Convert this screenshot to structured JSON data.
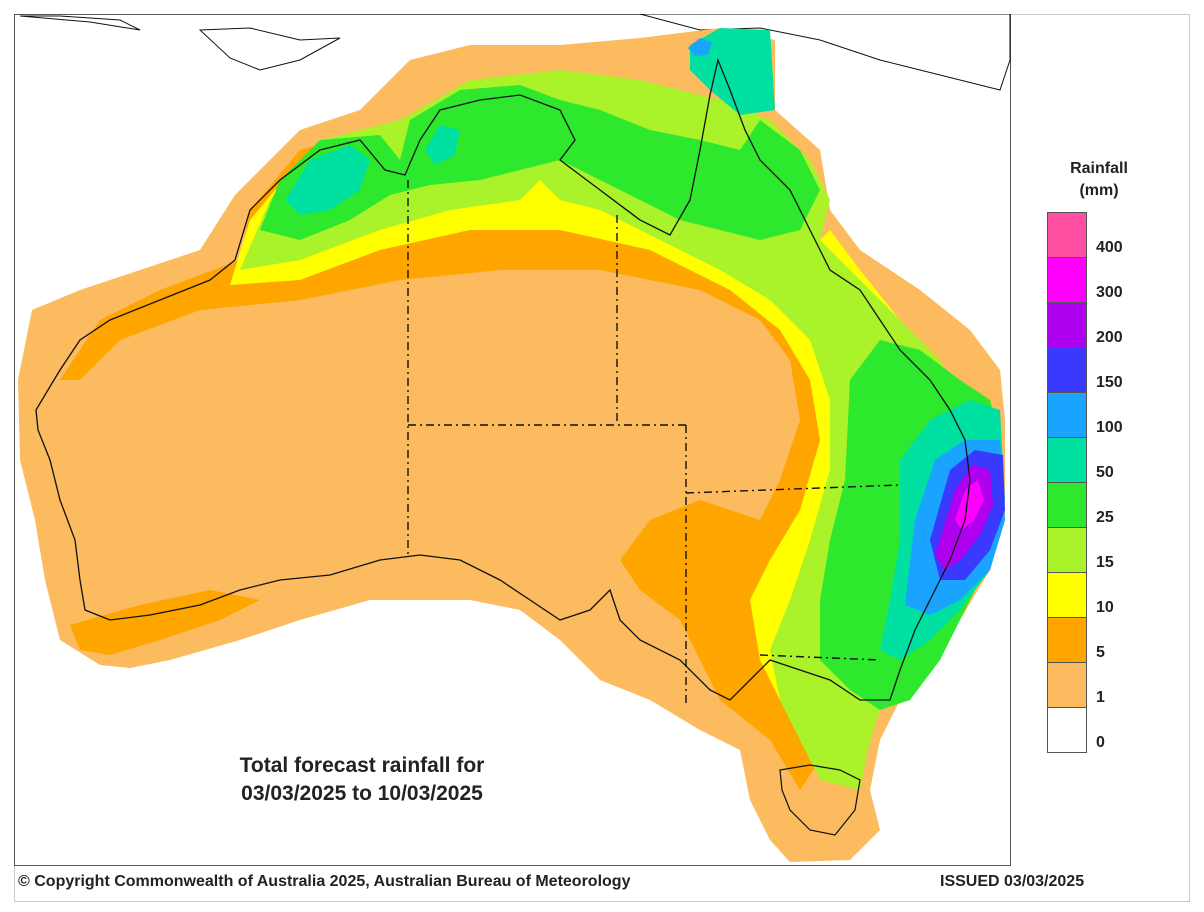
{
  "legend": {
    "title_line1": "Rainfall",
    "title_line2": "(mm)",
    "levels": [
      {
        "label": "",
        "color": "#ff4fa3"
      },
      {
        "label": "400",
        "color": "#ff00ff"
      },
      {
        "label": "300",
        "color": "#b000f0"
      },
      {
        "label": "200",
        "color": "#3a3aff"
      },
      {
        "label": "150",
        "color": "#1aa3ff"
      },
      {
        "label": "100",
        "color": "#00e0a0"
      },
      {
        "label": "50",
        "color": "#2ee82e"
      },
      {
        "label": "25",
        "color": "#aaf22a"
      },
      {
        "label": "15",
        "color": "#ffff00"
      },
      {
        "label": "10",
        "color": "#ffa500"
      },
      {
        "label": "5",
        "color": "#fbbb5e"
      },
      {
        "label": "1",
        "color": "#ffffff"
      },
      {
        "label": "0",
        "color": ""
      }
    ]
  },
  "caption": {
    "line1": "Total forecast rainfall for",
    "line2": "03/03/2025 to 10/03/2025"
  },
  "footer": {
    "copyright": "© Copyright Commonwealth of Australia 2025, Australian Bureau of Meteorology",
    "issued": "ISSUED 03/03/2025"
  },
  "colors": {
    "r1": "#fbbb5e",
    "r5": "#ffa500",
    "r10": "#ffff00",
    "r15": "#aaf22a",
    "r25": "#2ee82e",
    "r50": "#00e0a0",
    "r100": "#1aa3ff",
    "r150": "#3a3aff",
    "r200": "#b000f0",
    "r300": "#ff00ff",
    "r400": "#ff4fa3"
  }
}
